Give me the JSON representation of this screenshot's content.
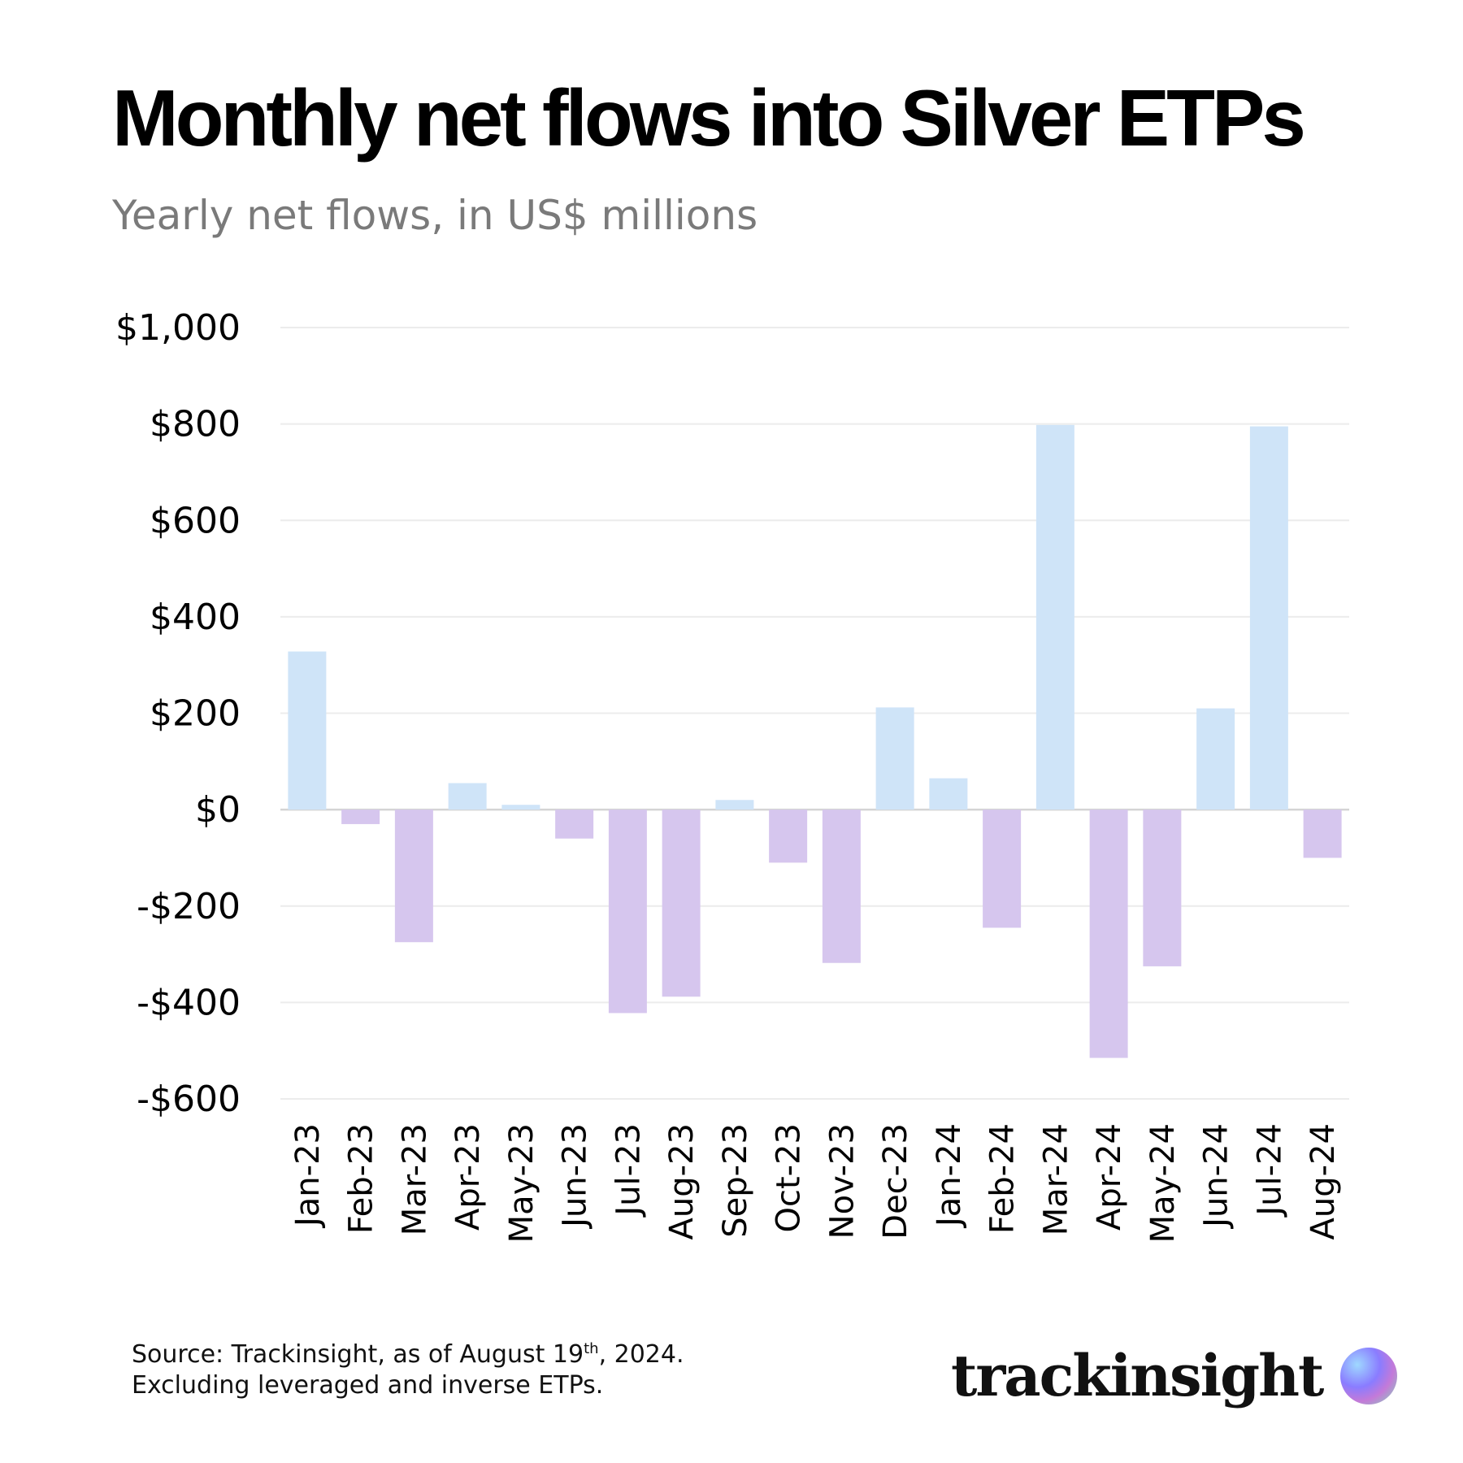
{
  "title": "Monthly net flows into Silver ETPs",
  "subtitle": "Yearly net flows, in US$ millions",
  "source": {
    "line1_prefix": "Source: Trackinsight, as of August 19",
    "line1_sup": "th",
    "line1_suffix": ", 2024.",
    "line2": "Excluding leveraged and inverse ETPs."
  },
  "logo": {
    "text": "trackinsight"
  },
  "colors": {
    "positive": "#cfe4f8",
    "negative": "#d6c6ee",
    "grid": "#ececec",
    "zero_line": "#d4d4d4"
  },
  "chart_data": {
    "type": "bar",
    "title": "Monthly net flows into Silver ETPs",
    "subtitle": "Yearly net flows, in US$ millions",
    "xlabel": "",
    "ylabel": "",
    "ylim": [
      -600,
      1000
    ],
    "yticks": [
      1000,
      800,
      600,
      400,
      200,
      0,
      -200,
      -400,
      -600
    ],
    "ytick_labels": [
      "$1,000",
      "$800",
      "$600",
      "$400",
      "$200",
      "$0",
      "-$200",
      "-$400",
      "-$600"
    ],
    "grid": true,
    "categories": [
      "Jan-23",
      "Feb-23",
      "Mar-23",
      "Apr-23",
      "May-23",
      "Jun-23",
      "Jul-23",
      "Aug-23",
      "Sep-23",
      "Oct-23",
      "Nov-23",
      "Dec-23",
      "Jan-24",
      "Feb-24",
      "Mar-24",
      "Apr-24",
      "May-24",
      "Jun-24",
      "Jul-24",
      "Aug-24"
    ],
    "values": [
      328,
      -30,
      -275,
      55,
      10,
      -60,
      -422,
      -388,
      20,
      -110,
      -318,
      212,
      65,
      -245,
      798,
      -515,
      -325,
      210,
      795,
      -100
    ]
  }
}
